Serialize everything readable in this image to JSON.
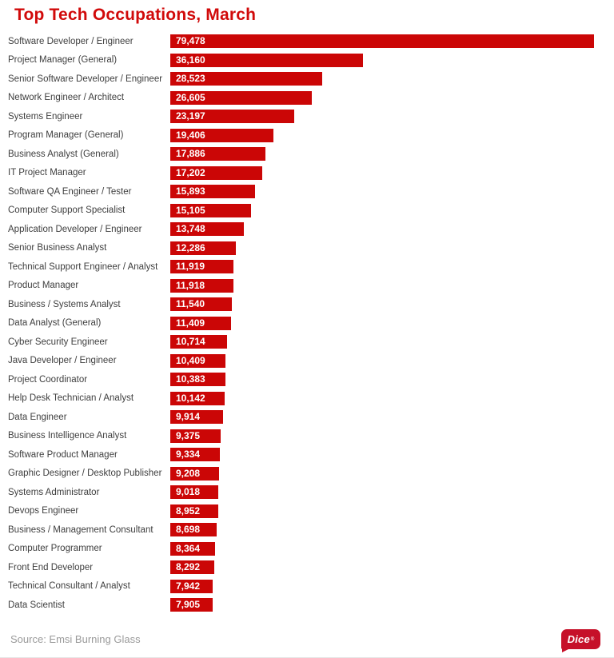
{
  "title": "Top Tech Occupations, March",
  "source": "Source: Emsi Burning Glass",
  "logo": {
    "text": "Dice",
    "mark": "®"
  },
  "colors": {
    "title": "#d10a0a",
    "bar": "#cb0606",
    "value_text": "#ffffff",
    "label_text": "#3e3e3e",
    "source_text": "#9a9a9a",
    "logo_bg": "#c61029"
  },
  "chart_data": {
    "type": "bar",
    "orientation": "horizontal",
    "title": "Top Tech Occupations, March",
    "xlabel": "",
    "ylabel": "",
    "xlim": [
      0,
      79478
    ],
    "grid": false,
    "legend": false,
    "data_labels_position": "inside-start",
    "categories": [
      "Software Developer / Engineer",
      "Project Manager (General)",
      "Senior Software Developer / Engineer",
      "Network Engineer / Architect",
      "Systems Engineer",
      "Program Manager (General)",
      "Business Analyst (General)",
      "IT Project Manager",
      "Software QA Engineer / Tester",
      "Computer Support Specialist",
      "Application Developer / Engineer",
      "Senior Business Analyst",
      "Technical Support Engineer / Analyst",
      "Product Manager",
      "Business / Systems Analyst",
      "Data Analyst (General)",
      "Cyber Security Engineer",
      "Java Developer / Engineer",
      "Project Coordinator",
      "Help Desk Technician / Analyst",
      "Data Engineer",
      "Business Intelligence Analyst",
      "Software Product Manager",
      "Graphic Designer / Desktop Publisher",
      "Systems Administrator",
      "Devops Engineer",
      "Business / Management Consultant",
      "Computer Programmer",
      "Front End Developer",
      "Technical Consultant / Analyst",
      "Data Scientist"
    ],
    "values": [
      79478,
      36160,
      28523,
      26605,
      23197,
      19406,
      17886,
      17202,
      15893,
      15105,
      13748,
      12286,
      11919,
      11918,
      11540,
      11409,
      10714,
      10409,
      10383,
      10142,
      9914,
      9375,
      9334,
      9208,
      9018,
      8952,
      8698,
      8364,
      8292,
      7942,
      7905
    ],
    "value_labels": [
      "79,478",
      "36,160",
      "28,523",
      "26,605",
      "23,197",
      "19,406",
      "17,886",
      "17,202",
      "15,893",
      "15,105",
      "13,748",
      "12,286",
      "11,919",
      "11,918",
      "11,540",
      "11,409",
      "10,714",
      "10,409",
      "10,383",
      "10,142",
      "9,914",
      "9,375",
      "9,334",
      "9,208",
      "9,018",
      "8,952",
      "8,698",
      "8,364",
      "8,292",
      "7,942",
      "7,905"
    ]
  }
}
